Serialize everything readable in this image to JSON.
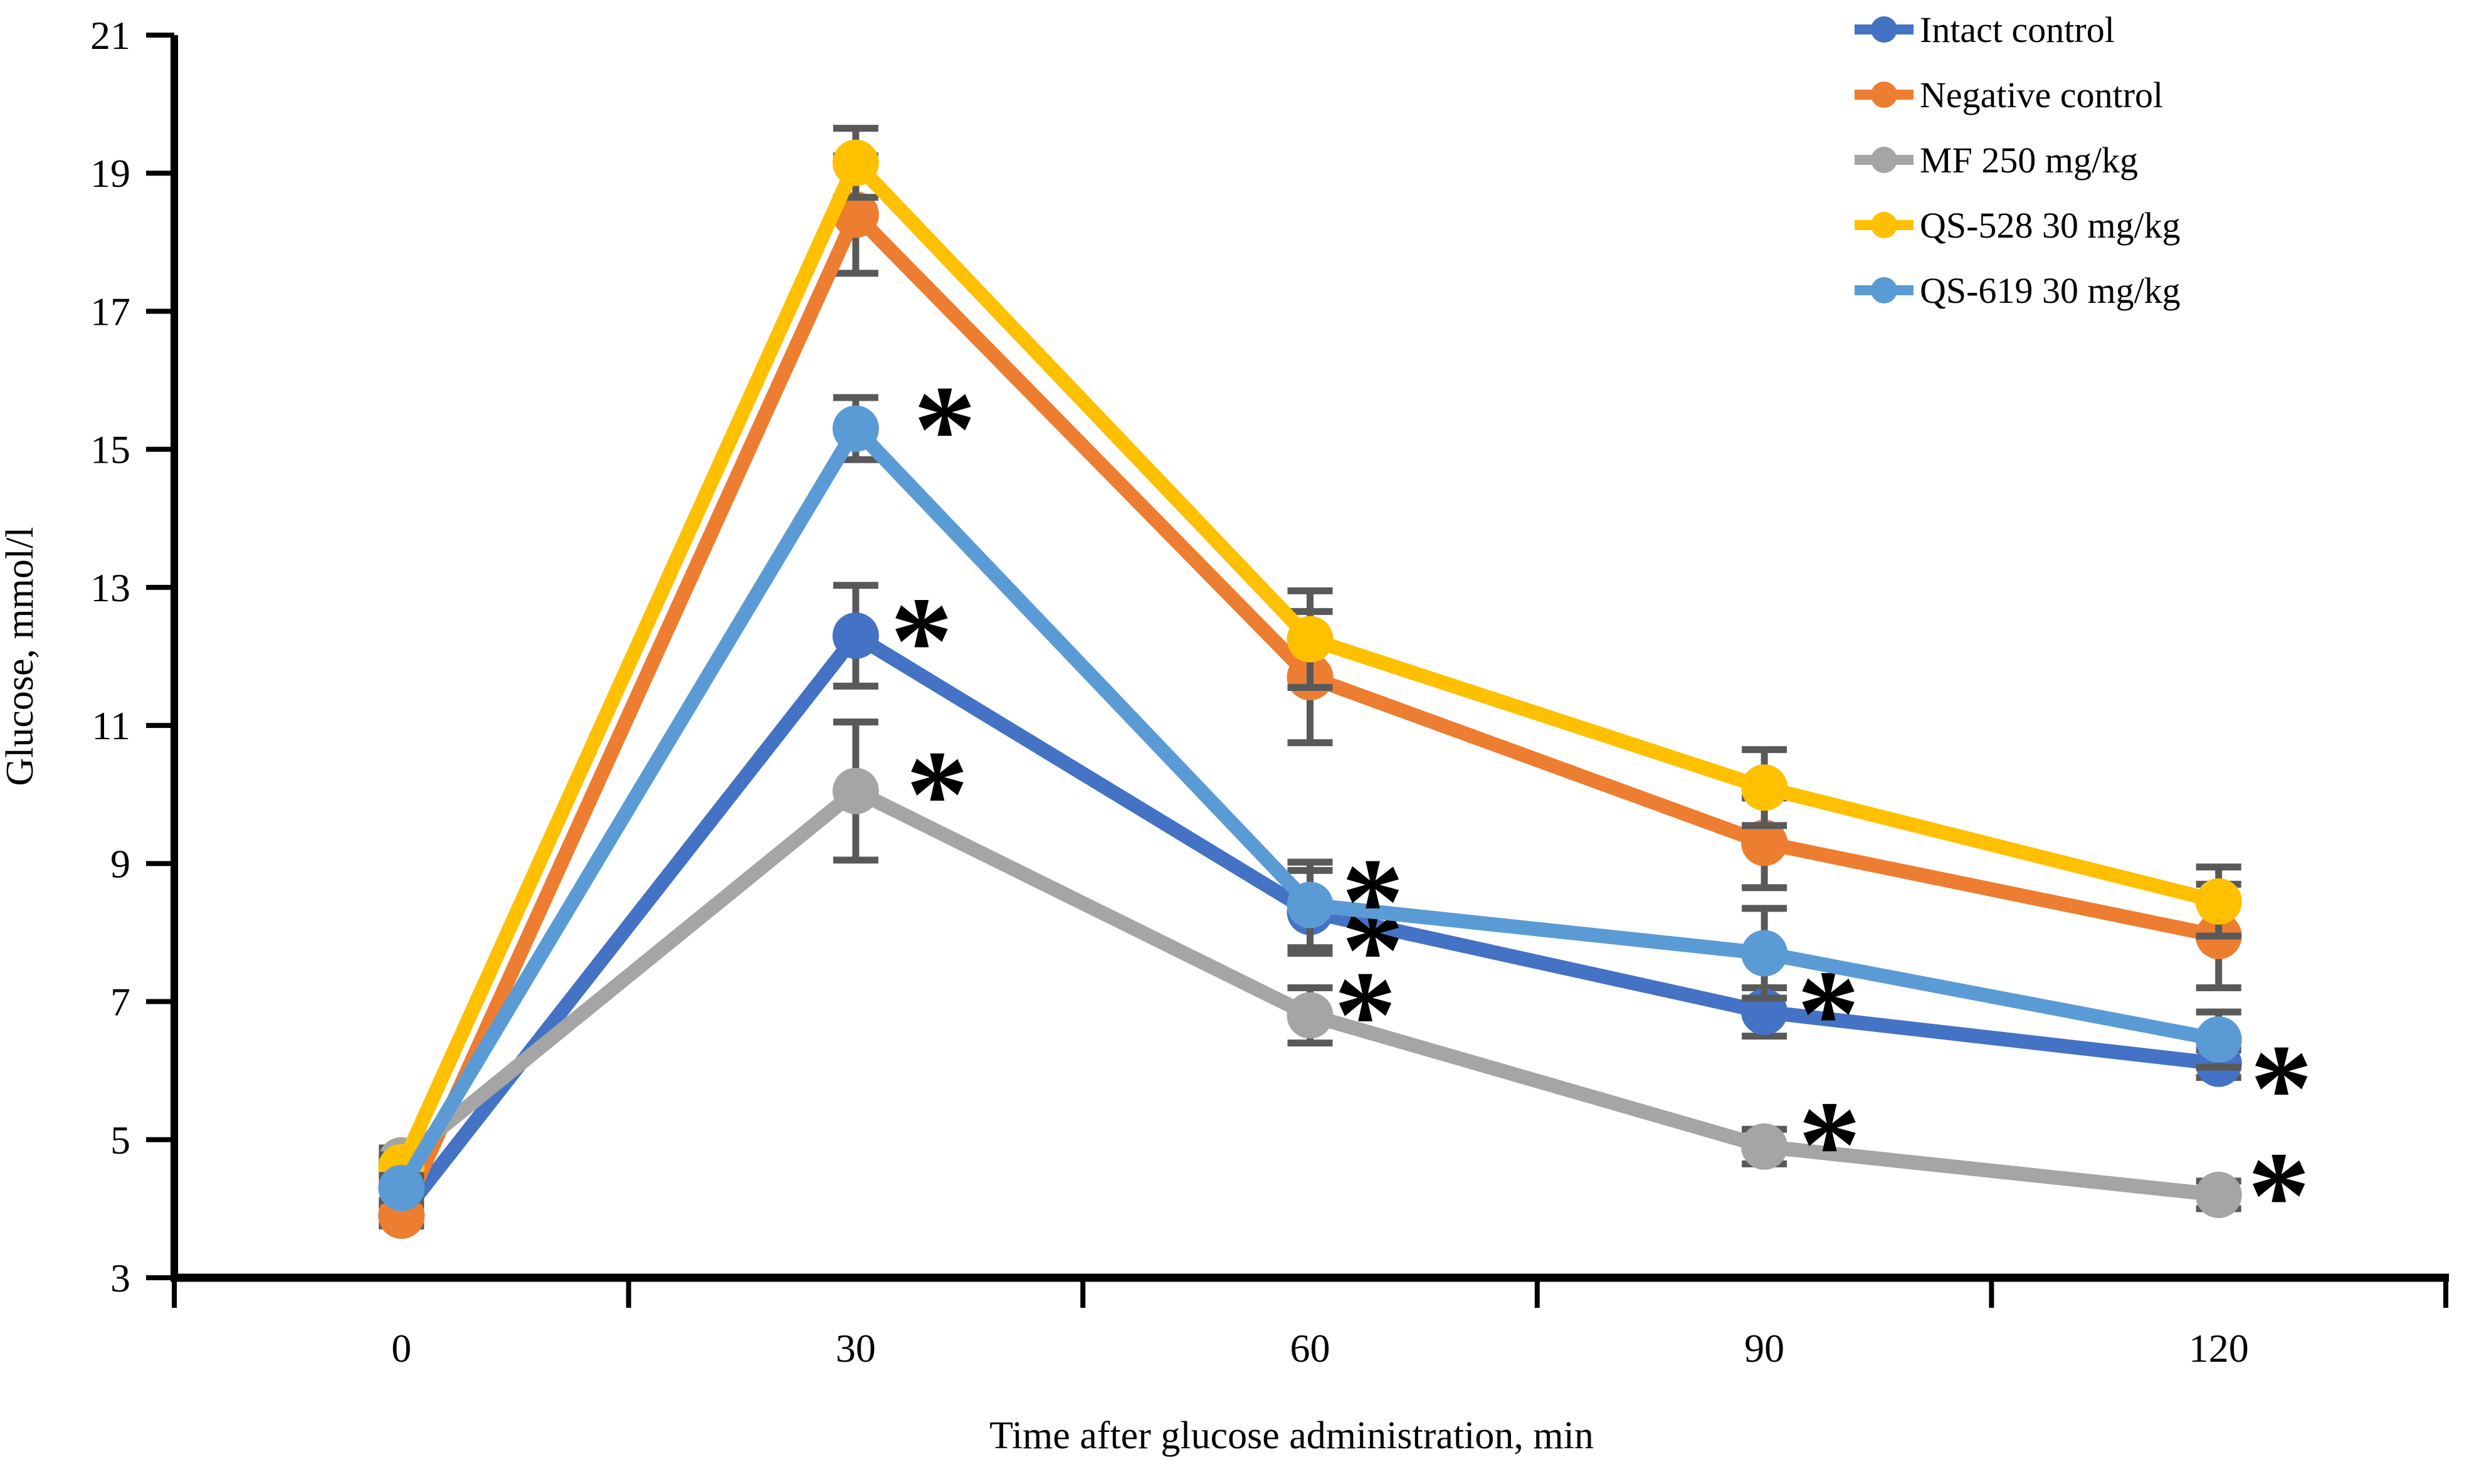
{
  "figure": {
    "background": "#ffffff",
    "axis_color": "#000000",
    "error_bar_color": "#595959"
  },
  "chart_data": {
    "type": "line",
    "title": "",
    "xlabel": "Time after glucose administration, min",
    "ylabel": "Glucose, mmol/l",
    "x": [
      0,
      30,
      60,
      90,
      120
    ],
    "yticks": [
      3,
      5,
      7,
      9,
      11,
      13,
      15,
      17,
      19,
      21
    ],
    "ylim": [
      3,
      21
    ],
    "grid": false,
    "legend_position": "top-right",
    "significance_symbol": "*",
    "series": [
      {
        "name": "Intact control",
        "color": "#4472C4",
        "values": [
          3.9,
          12.3,
          8.3,
          6.85,
          6.1
        ],
        "errors": [
          0.15,
          0.73,
          0.6,
          0.35,
          0.2
        ],
        "asterisks": [
          {
            "point": 1,
            "dx": 55,
            "dy": -25
          },
          {
            "point": 2,
            "dx": 50,
            "dy": 28
          },
          {
            "point": 3,
            "dx": 52,
            "dy": -30
          },
          {
            "point": 4,
            "dx": 50,
            "dy": 6
          }
        ]
      },
      {
        "name": "Negative control",
        "color": "#ED7D31",
        "values": [
          3.9,
          18.4,
          11.7,
          9.3,
          7.95
        ],
        "errors": [
          0.15,
          0.85,
          0.95,
          0.65,
          0.75
        ],
        "asterisks": []
      },
      {
        "name": "MF 250 mg/kg",
        "color": "#A5A5A5",
        "values": [
          4.7,
          10.05,
          6.8,
          4.9,
          4.2
        ],
        "errors": [
          0.18,
          1.0,
          0.4,
          0.25,
          0.2
        ],
        "asterisks": [
          {
            "point": 1,
            "dx": 80,
            "dy": -28
          },
          {
            "point": 2,
            "dx": 38,
            "dy": -34
          },
          {
            "point": 3,
            "dx": 54,
            "dy": -36
          },
          {
            "point": 4,
            "dx": 46,
            "dy": -32
          }
        ]
      },
      {
        "name": "QS-528 30 mg/kg",
        "color": "#FFC000",
        "values": [
          4.6,
          19.15,
          12.25,
          10.1,
          8.45
        ],
        "errors": [
          0.18,
          0.5,
          0.7,
          0.55,
          0.5
        ],
        "asterisks": []
      },
      {
        "name": "QS-619 30 mg/kg",
        "color": "#5B9BD5",
        "values": [
          4.3,
          15.3,
          8.4,
          7.7,
          6.45
        ],
        "errors": [
          0.18,
          0.45,
          0.62,
          0.65,
          0.4
        ],
        "asterisks": [
          {
            "point": 1,
            "dx": 92,
            "dy": -32
          },
          {
            "point": 2,
            "dx": 50,
            "dy": -38
          }
        ]
      }
    ]
  }
}
